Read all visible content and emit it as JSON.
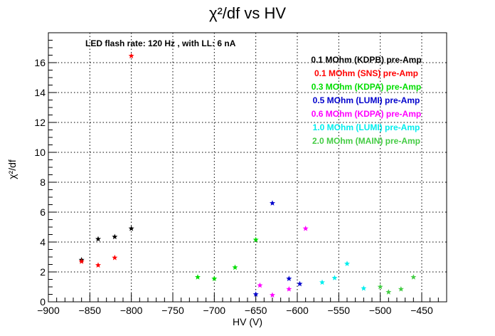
{
  "chart_data": {
    "type": "scatter",
    "title": "χ²/df vs HV",
    "xlabel": "HV (V)",
    "ylabel": "χ²/df",
    "xlim": [
      -900,
      -420
    ],
    "ylim": [
      0,
      18
    ],
    "x_ticks": [
      -900,
      -850,
      -800,
      -750,
      -700,
      -650,
      -600,
      -550,
      -500,
      -450
    ],
    "y_ticks": [
      0,
      2,
      4,
      6,
      8,
      10,
      12,
      14,
      16
    ],
    "grid": true,
    "marker": "star",
    "annotation": "LED flash rate: 120 Hz , with LL: 6 nA",
    "legend_placement": "top-right",
    "series": [
      {
        "name": "0.1 MOhm (KDPB) pre-Amp",
        "color": "#000000",
        "points": [
          [
            -860,
            2.8
          ],
          [
            -840,
            4.2
          ],
          [
            -820,
            4.35
          ],
          [
            -800,
            4.9
          ]
        ]
      },
      {
        "name": "0.1 MOhm (SNS) pre-Amp",
        "color": "#ff0000",
        "points": [
          [
            -860,
            2.7
          ],
          [
            -840,
            2.45
          ],
          [
            -820,
            2.95
          ],
          [
            -800,
            16.45
          ]
        ]
      },
      {
        "name": "0.3 MOhm (KDPA) pre-Amp",
        "color": "#00dd00",
        "points": [
          [
            -720,
            1.65
          ],
          [
            -700,
            1.55
          ],
          [
            -675,
            2.3
          ],
          [
            -650,
            4.15
          ]
        ]
      },
      {
        "name": "0.5 MOhm (LUMI) pre-Amp",
        "color": "#0000cc",
        "points": [
          [
            -650,
            0.5
          ],
          [
            -630,
            6.6
          ],
          [
            -610,
            1.55
          ],
          [
            -597,
            1.2
          ]
        ]
      },
      {
        "name": "0.6 MOhm (KDPA) pre-Amp",
        "color": "#ff00ff",
        "points": [
          [
            -645,
            1.1
          ],
          [
            -630,
            0.45
          ],
          [
            -610,
            0.85
          ],
          [
            -590,
            4.9
          ]
        ]
      },
      {
        "name": "1.0 MOhm (LUMI) pre-Amp",
        "color": "#00eeee",
        "points": [
          [
            -570,
            1.3
          ],
          [
            -555,
            1.6
          ],
          [
            -540,
            2.55
          ],
          [
            -520,
            0.9
          ]
        ]
      },
      {
        "name": "2.0 MOhm (MAIN) pre-Amp",
        "color": "#44cc44",
        "points": [
          [
            -500,
            1.0
          ],
          [
            -490,
            0.65
          ],
          [
            -475,
            0.85
          ],
          [
            -460,
            1.65
          ]
        ]
      }
    ]
  }
}
